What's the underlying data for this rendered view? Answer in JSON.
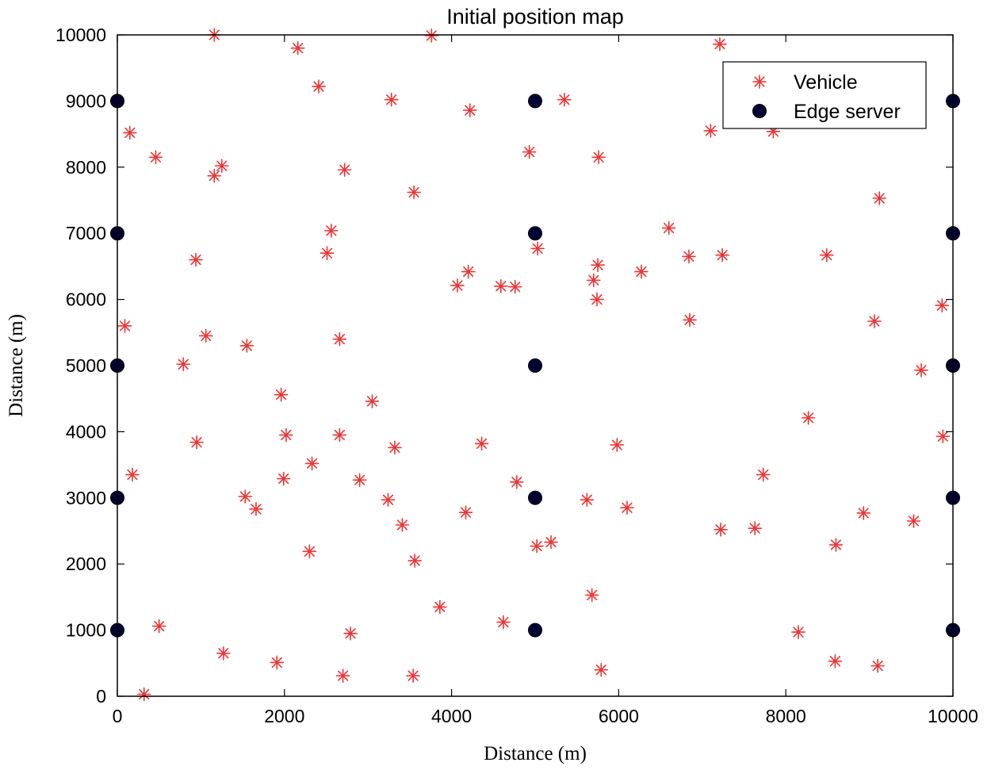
{
  "chart_data": {
    "type": "scatter",
    "title": "Initial position map",
    "xlabel": "Distance (m)",
    "ylabel": "Distance (m)",
    "xlim": [
      0,
      10000
    ],
    "ylim": [
      0,
      10000
    ],
    "xticks": [
      "0",
      "2000",
      "4000",
      "6000",
      "8000",
      "10000"
    ],
    "yticks": [
      "0",
      "1000",
      "2000",
      "3000",
      "4000",
      "5000",
      "6000",
      "7000",
      "8000",
      "9000",
      "10000"
    ],
    "grid": false,
    "legend_position": "top-right",
    "series": [
      {
        "name": "Vehicle",
        "marker": "asterisk",
        "color": "#ee3333",
        "points": [
          [
            1160,
            10000
          ],
          [
            2160,
            9800
          ],
          [
            3760,
            9990
          ],
          [
            7210,
            9860
          ],
          [
            2410,
            9220
          ],
          [
            3280,
            9020
          ],
          [
            4220,
            8860
          ],
          [
            5350,
            9020
          ],
          [
            150,
            8520
          ],
          [
            460,
            8150
          ],
          [
            1160,
            7870
          ],
          [
            1250,
            8020
          ],
          [
            2720,
            7960
          ],
          [
            4930,
            8230
          ],
          [
            5760,
            8150
          ],
          [
            7100,
            8550
          ],
          [
            7850,
            8540
          ],
          [
            9120,
            7530
          ],
          [
            3550,
            7620
          ],
          [
            940,
            6600
          ],
          [
            2560,
            7040
          ],
          [
            2510,
            6700
          ],
          [
            4070,
            6210
          ],
          [
            4200,
            6420
          ],
          [
            4590,
            6200
          ],
          [
            4760,
            6190
          ],
          [
            5030,
            6770
          ],
          [
            5700,
            6290
          ],
          [
            5750,
            6520
          ],
          [
            5740,
            6000
          ],
          [
            6270,
            6420
          ],
          [
            6600,
            7080
          ],
          [
            6840,
            6650
          ],
          [
            7240,
            6670
          ],
          [
            8490,
            6670
          ],
          [
            9870,
            5910
          ],
          [
            90,
            5600
          ],
          [
            1060,
            5450
          ],
          [
            1550,
            5300
          ],
          [
            2660,
            5400
          ],
          [
            790,
            5020
          ],
          [
            6850,
            5690
          ],
          [
            9060,
            5670
          ],
          [
            9620,
            4930
          ],
          [
            1960,
            4560
          ],
          [
            3050,
            4460
          ],
          [
            8270,
            4210
          ],
          [
            950,
            3840
          ],
          [
            2020,
            3950
          ],
          [
            2660,
            3950
          ],
          [
            3320,
            3760
          ],
          [
            4360,
            3820
          ],
          [
            5980,
            3800
          ],
          [
            9880,
            3930
          ],
          [
            180,
            3350
          ],
          [
            1990,
            3290
          ],
          [
            2330,
            3520
          ],
          [
            2900,
            3270
          ],
          [
            1530,
            3020
          ],
          [
            1660,
            2830
          ],
          [
            3240,
            2970
          ],
          [
            4780,
            3240
          ],
          [
            7730,
            3350
          ],
          [
            5620,
            2970
          ],
          [
            6100,
            2850
          ],
          [
            4170,
            2780
          ],
          [
            3410,
            2590
          ],
          [
            7220,
            2520
          ],
          [
            7630,
            2540
          ],
          [
            8930,
            2770
          ],
          [
            9530,
            2650
          ],
          [
            2300,
            2190
          ],
          [
            3560,
            2050
          ],
          [
            5020,
            2270
          ],
          [
            5190,
            2330
          ],
          [
            8600,
            2290
          ],
          [
            3860,
            1350
          ],
          [
            5680,
            1530
          ],
          [
            4620,
            1120
          ],
          [
            500,
            1060
          ],
          [
            2790,
            950
          ],
          [
            8150,
            970
          ],
          [
            1270,
            650
          ],
          [
            1910,
            510
          ],
          [
            2700,
            310
          ],
          [
            3540,
            310
          ],
          [
            5790,
            400
          ],
          [
            8590,
            530
          ],
          [
            9100,
            460
          ],
          [
            320,
            30
          ]
        ]
      },
      {
        "name": "Edge server",
        "marker": "circle",
        "color": "#000033",
        "points": [
          [
            0,
            9000
          ],
          [
            0,
            7000
          ],
          [
            0,
            5000
          ],
          [
            0,
            3000
          ],
          [
            0,
            1000
          ],
          [
            5000,
            9000
          ],
          [
            5000,
            7000
          ],
          [
            5000,
            5000
          ],
          [
            5000,
            3000
          ],
          [
            5000,
            1000
          ],
          [
            10000,
            9000
          ],
          [
            10000,
            7000
          ],
          [
            10000,
            5000
          ],
          [
            10000,
            3000
          ],
          [
            10000,
            1000
          ]
        ]
      }
    ]
  }
}
